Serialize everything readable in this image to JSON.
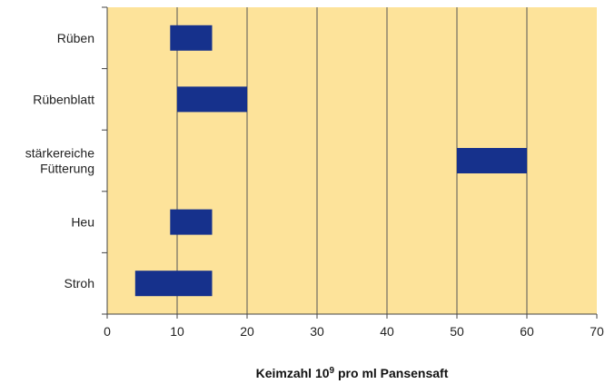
{
  "chart_data": {
    "type": "bar",
    "orientation": "horizontal-range",
    "categories": [
      "Rüben",
      "Rübenblatt",
      "stärkereiche Fütterung",
      "Heu",
      "Stroh"
    ],
    "category_lines": [
      [
        "Rüben"
      ],
      [
        "Rübenblatt"
      ],
      [
        "stärkereiche",
        "Fütterung"
      ],
      [
        "Heu"
      ],
      [
        "Stroh"
      ]
    ],
    "series": [
      {
        "ranges": [
          [
            9,
            15
          ],
          [
            10,
            20
          ],
          [
            50,
            60
          ],
          [
            9,
            15
          ],
          [
            4,
            15
          ]
        ]
      }
    ],
    "xlim": [
      0,
      70
    ],
    "xticks": [
      0,
      10,
      20,
      30,
      40,
      50,
      60,
      70
    ],
    "xlabel": {
      "prefix": "Keimzahl 10",
      "superscript": "9",
      "suffix": " pro ml Pansensaft"
    },
    "ylabel": "",
    "grid": "vertical",
    "legend": "none",
    "colors": {
      "plot_background": "#fde39a",
      "bar": "#16318c",
      "gridline": "#555555",
      "axis": "#444444"
    }
  }
}
